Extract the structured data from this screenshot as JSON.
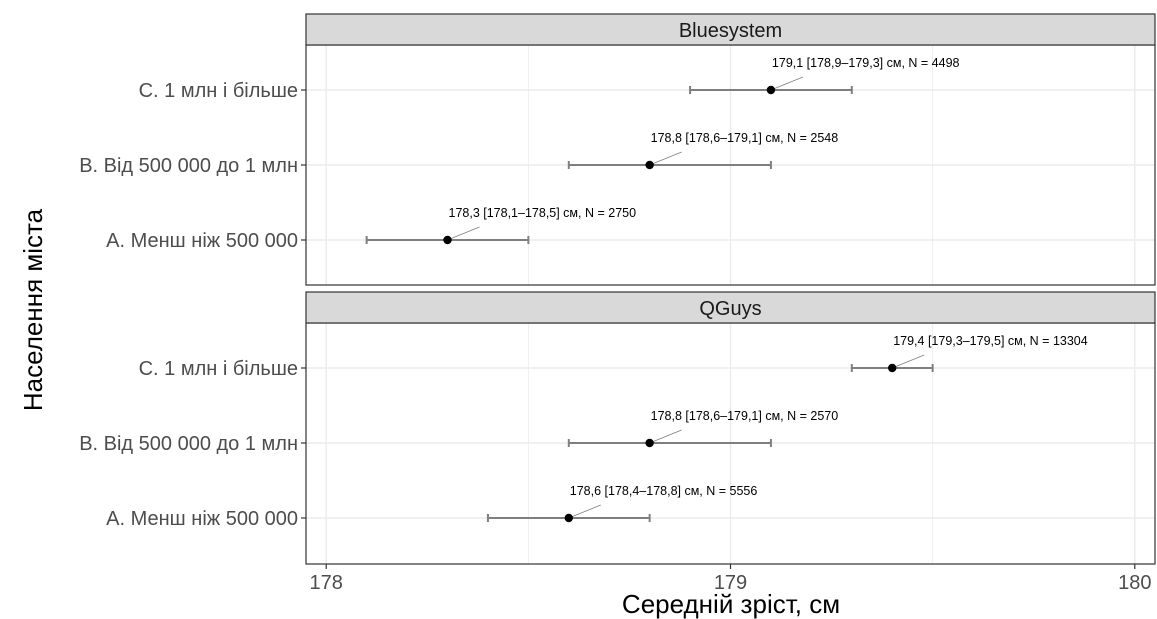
{
  "chart_data": {
    "type": "scatter",
    "subtype": "dot-and-errorbar",
    "xlabel": "Середній зріст, см",
    "ylabel": "Населення міста",
    "xlim": [
      177.95,
      180.05
    ],
    "x_ticks": [
      178,
      179,
      180
    ],
    "x_tick_labels": [
      "178",
      "179",
      "180"
    ],
    "categories": [
      "C. 1 млн і більше",
      "B. Від 500 000 до 1 млн",
      "A. Менш ніж 500 000"
    ],
    "grid": true,
    "legend": "none",
    "colors": {
      "point": "#000000",
      "errorbar": "#7f7f7f",
      "strip_fill": "#d9d9d9",
      "grid": "#ebebeb",
      "label_line": "#7f7f7f"
    },
    "panels": [
      {
        "name": "Bluesystem",
        "points": [
          {
            "category": "C. 1 млн і більше",
            "mean": 179.1,
            "lo": 178.9,
            "hi": 179.3,
            "label": "179,1 [178,9–179,3] см, N = 4498"
          },
          {
            "category": "B. Від 500 000 до 1 млн",
            "mean": 178.8,
            "lo": 178.6,
            "hi": 179.1,
            "label": "178,8 [178,6–179,1] см, N = 2548"
          },
          {
            "category": "A. Менш ніж 500 000",
            "mean": 178.3,
            "lo": 178.1,
            "hi": 178.5,
            "label": "178,3 [178,1–178,5] см, N = 2750"
          }
        ]
      },
      {
        "name": "QGuys",
        "points": [
          {
            "category": "C. 1 млн і більше",
            "mean": 179.4,
            "lo": 179.3,
            "hi": 179.5,
            "label": "179,4 [179,3–179,5] см, N = 13304"
          },
          {
            "category": "B. Від 500 000 до 1 млн",
            "mean": 178.8,
            "lo": 178.6,
            "hi": 179.1,
            "label": "178,8 [178,6–179,1] см, N = 2570"
          },
          {
            "category": "A. Менш ніж 500 000",
            "mean": 178.6,
            "lo": 178.4,
            "hi": 178.8,
            "label": "178,6 [178,4–178,8] см, N = 5556"
          }
        ]
      }
    ]
  }
}
